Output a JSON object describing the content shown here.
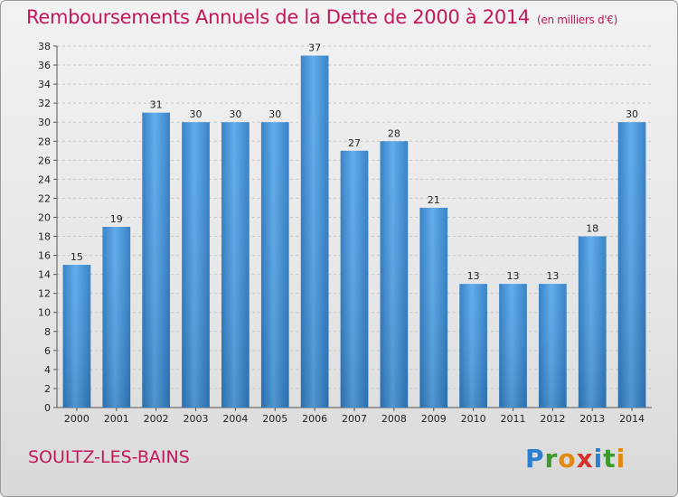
{
  "title": "Remboursements Annuels de la Dette de 2000 à 2014",
  "subtitle": "(en milliers d'€)",
  "town": "SOULTZ-LES-BAINS",
  "logo": {
    "text": "Proxiti",
    "colors": [
      "#2b7fd0",
      "#3a9a2c",
      "#e08a12",
      "#d8302a"
    ]
  },
  "colors": {
    "bar": "#3d8fd6",
    "title": "#c2185b"
  },
  "chart_data": {
    "type": "bar",
    "categories": [
      "2000",
      "2001",
      "2002",
      "2003",
      "2004",
      "2005",
      "2006",
      "2007",
      "2008",
      "2009",
      "2010",
      "2011",
      "2012",
      "2013",
      "2014"
    ],
    "values": [
      15,
      19,
      31,
      30,
      30,
      30,
      37,
      27,
      28,
      21,
      13,
      13,
      13,
      18,
      30
    ],
    "ylim": [
      0,
      38
    ],
    "yticks": [
      0,
      2,
      4,
      6,
      8,
      10,
      12,
      14,
      16,
      18,
      20,
      22,
      24,
      26,
      28,
      30,
      32,
      34,
      36,
      38
    ],
    "grid": true,
    "xlabel": "",
    "ylabel": ""
  }
}
